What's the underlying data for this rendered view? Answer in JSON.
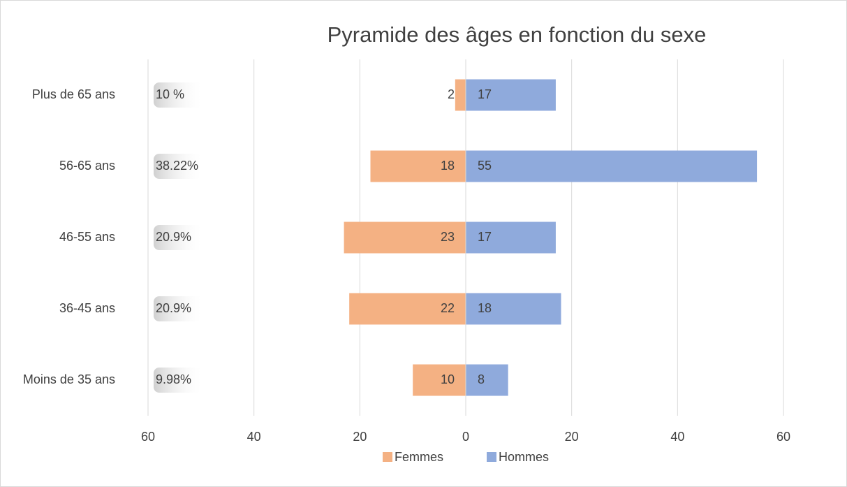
{
  "chart_data": {
    "type": "pyramid",
    "title": "Pyramide des âges en fonction du sexe",
    "categories": [
      "Plus de 65 ans",
      "56-65 ans",
      "46-55 ans",
      "36-45 ans",
      "Moins de 35 ans"
    ],
    "series": [
      {
        "name": "Femmes",
        "color": "#f4b183",
        "side": "left",
        "values": [
          2,
          18,
          23,
          22,
          10
        ]
      },
      {
        "name": "Hommes",
        "color": "#8faadc",
        "side": "right",
        "values": [
          17,
          55,
          17,
          18,
          8
        ]
      }
    ],
    "annotations": [
      "10 %",
      "38.22%",
      "20.9%",
      "20.9%",
      "9.98%"
    ],
    "xlim": [
      -60,
      60
    ],
    "xticks": [
      {
        "value": -60,
        "label": "60"
      },
      {
        "value": -40,
        "label": "40"
      },
      {
        "value": -20,
        "label": "20"
      },
      0,
      20,
      40,
      60
    ],
    "grid": true,
    "legend": "bottom"
  }
}
